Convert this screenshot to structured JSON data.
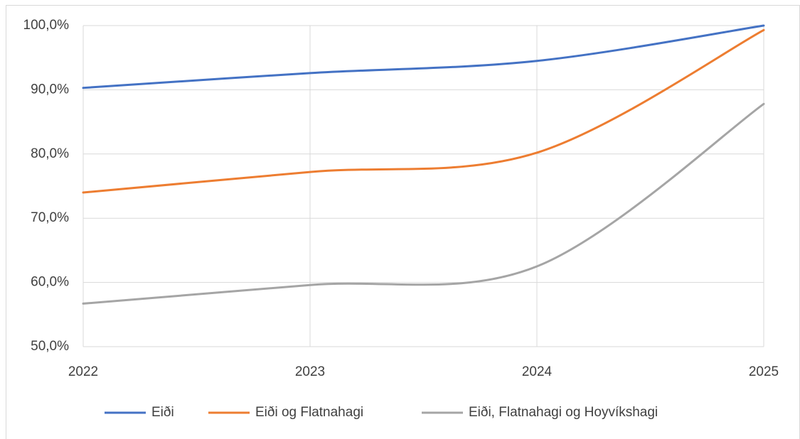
{
  "chart_data": {
    "type": "line",
    "x": [
      2022,
      2023,
      2024,
      2025
    ],
    "xlim": [
      2022,
      2025
    ],
    "xticks": [
      2022,
      2023,
      2024,
      2025
    ],
    "ylim": [
      50,
      100
    ],
    "yticks": [
      {
        "value": 50,
        "label": "50,0%"
      },
      {
        "value": 60,
        "label": "60,0%"
      },
      {
        "value": 70,
        "label": "70,0%"
      },
      {
        "value": 80,
        "label": "80,0%"
      },
      {
        "value": 90,
        "label": "90,0%"
      },
      {
        "value": 100,
        "label": "100,0%"
      }
    ],
    "grid": true,
    "smooth": true,
    "legend": "bottom",
    "series": [
      {
        "name": "Eiði",
        "color": "#4472c4",
        "values": [
          90.3,
          92.6,
          94.5,
          100
        ]
      },
      {
        "name": "Eiði og Flatnahagi",
        "color": "#ed7d31",
        "values": [
          74,
          77.2,
          80.2,
          99.3
        ]
      },
      {
        "name": "Eiði, Flatnahagi og Hoyvíkshagi",
        "color": "#a5a5a5",
        "values": [
          56.7,
          59.6,
          62.5,
          87.8
        ]
      }
    ]
  }
}
